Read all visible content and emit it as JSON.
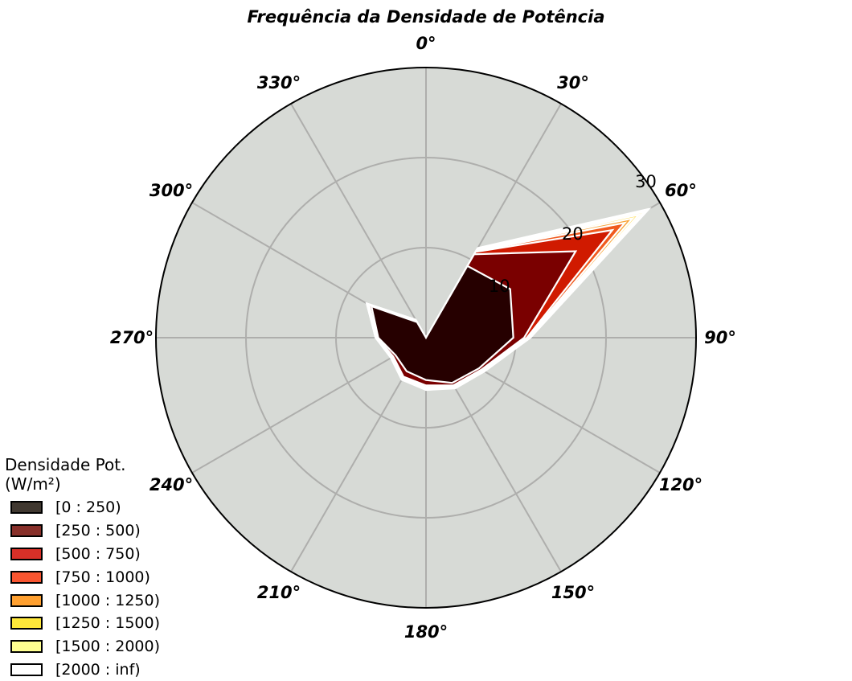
{
  "chart_data": {
    "type": "radar",
    "title": "Frequência da Densidade de Potência",
    "angle_labels": [
      "0°",
      "30°",
      "60°",
      "90°",
      "120°",
      "150°",
      "180°",
      "210°",
      "240°",
      "270°",
      "300°",
      "330°"
    ],
    "theta_direction": "clockwise",
    "theta_zero": "top",
    "directions_deg": [
      0,
      30,
      60,
      90,
      120,
      150,
      180,
      210,
      240,
      270,
      300,
      330
    ],
    "radial_ticks": [
      "10",
      "20",
      "30"
    ],
    "rlim": [
      0,
      30
    ],
    "grid": true,
    "legend_title": "Densidade Pot.\n(W/m²)",
    "legend_position": "lower-left",
    "series_cumulative": true,
    "series": [
      {
        "name": "[0 : 250)",
        "color": "#260000",
        "swatch": "#403830",
        "values": [
          0.0,
          9.2,
          10.8,
          9.7,
          6.8,
          5.8,
          4.7,
          4.3,
          3.9,
          5.3,
          7.0,
          2.0
        ]
      },
      {
        "name": "[250 : 500)",
        "color": "#7a0000",
        "swatch": "#88302a",
        "values": [
          0.0,
          10.7,
          19.2,
          10.9,
          7.1,
          6.1,
          5.3,
          5.0,
          4.2,
          5.4,
          7.3,
          2.1
        ]
      },
      {
        "name": "[500 : 750)",
        "color": "#d01a00",
        "swatch": "#d83028",
        "values": [
          0.0,
          11.0,
          23.9,
          11.2,
          7.2,
          6.2,
          5.5,
          5.1,
          4.3,
          5.4,
          7.4,
          2.2
        ]
      },
      {
        "name": "[750 : 1000)",
        "color": "#f05a1e",
        "swatch": "#f85530",
        "values": [
          0.0,
          11.1,
          25.5,
          11.3,
          7.3,
          6.3,
          5.6,
          5.2,
          4.3,
          5.5,
          7.4,
          2.2
        ]
      },
      {
        "name": "[1000 : 1250)",
        "color": "#f9a63c",
        "swatch": "#ffa030",
        "values": [
          0.0,
          11.2,
          26.5,
          11.4,
          7.4,
          6.3,
          5.6,
          5.2,
          4.4,
          5.5,
          7.5,
          2.2
        ]
      },
      {
        "name": "[1250 : 1500)",
        "color": "#ffdf60",
        "swatch": "#ffe83a",
        "values": [
          0.0,
          11.3,
          27.3,
          11.4,
          7.4,
          6.4,
          5.7,
          5.3,
          4.4,
          5.6,
          7.5,
          2.3
        ]
      },
      {
        "name": "[1500 : 2000)",
        "color": "#fff6c8",
        "swatch": "#ffff90",
        "values": [
          0.0,
          11.4,
          28.0,
          11.5,
          7.5,
          6.4,
          5.8,
          5.3,
          4.4,
          5.6,
          7.6,
          2.3
        ]
      },
      {
        "name": "[2000 : inf)",
        "color": "#ffffff",
        "swatch": "#ffffff",
        "values": [
          0.0,
          11.5,
          28.6,
          11.6,
          7.5,
          6.5,
          5.8,
          5.4,
          4.5,
          5.6,
          7.6,
          2.3
        ]
      }
    ]
  },
  "colors": {
    "plot_background": "#d7dad6",
    "grid": "#aeaeac",
    "outer_circle": "#000000",
    "series_edge": "#ffffff"
  }
}
